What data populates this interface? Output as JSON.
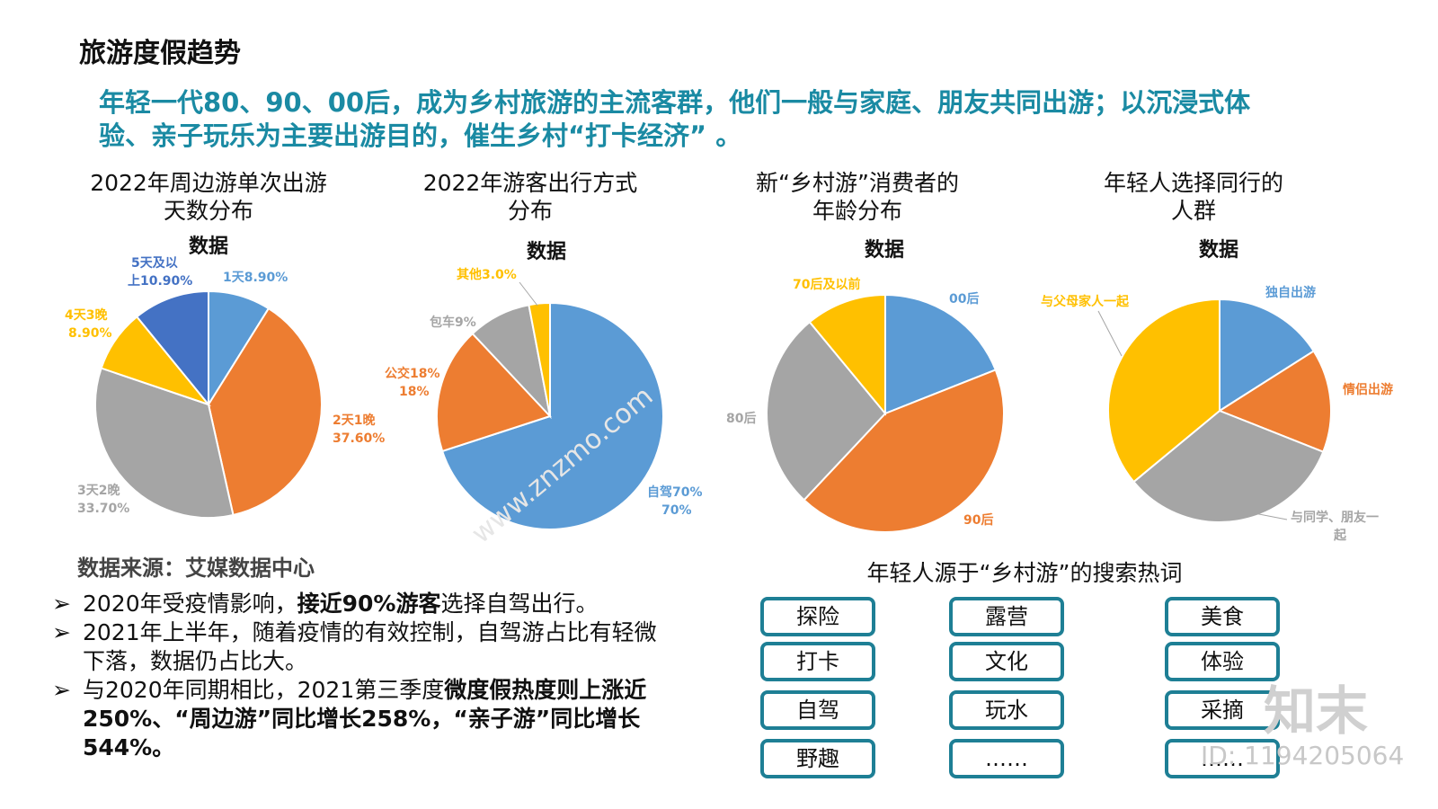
{
  "page_title": "旅游度假趋势",
  "subtitle": {
    "line1": "年轻一代80、90、00后，成为乡村旅游的主流客群，他们一般与家庭、朋友共同出游；以沉浸式体",
    "line2": "验、亲子玩乐为主要出游目的，催生乡村“打卡经济” 。"
  },
  "colors": {
    "blue": "#5b9bd5",
    "orange": "#ed7d31",
    "gray": "#a5a5a5",
    "yellow": "#ffc000",
    "darkblue": "#4472c4",
    "teal": "#1a8aa3",
    "kwborder": "#1e7f95"
  },
  "chart_data": [
    {
      "type": "pie",
      "title_lines": [
        "2022年周边游单次出游",
        "天数分布"
      ],
      "subtitle": "数据",
      "slices": [
        {
          "label": "1天8.90%",
          "value": 8.9,
          "color": "#5b9bd5"
        },
        {
          "label": "2天1晚 37.60%",
          "value": 37.6,
          "color": "#ed7d31"
        },
        {
          "label": "3天2晚 33.70%",
          "value": 33.7,
          "color": "#a5a5a5"
        },
        {
          "label": "4天3晚 8.90%",
          "value": 8.9,
          "color": "#ffc000"
        },
        {
          "label": "5天及以上10.90%",
          "value": 10.9,
          "color": "#4472c4"
        }
      ]
    },
    {
      "type": "pie",
      "title_lines": [
        "2022年游客出行方式",
        "分布"
      ],
      "subtitle": "数据",
      "slices": [
        {
          "label": "自驾70% 70%",
          "value": 70,
          "color": "#5b9bd5"
        },
        {
          "label": "公交18% 18%",
          "value": 18,
          "color": "#ed7d31"
        },
        {
          "label": "包车9%",
          "value": 9,
          "color": "#a5a5a5"
        },
        {
          "label": "其他3.0%",
          "value": 3,
          "color": "#ffc000"
        }
      ]
    },
    {
      "type": "pie",
      "title_lines": [
        "新“乡村游”消费者的",
        "年龄分布"
      ],
      "subtitle": "数据",
      "slices": [
        {
          "label": "00后",
          "value": 19,
          "color": "#5b9bd5"
        },
        {
          "label": "90后",
          "value": 43,
          "color": "#ed7d31"
        },
        {
          "label": "80后",
          "value": 27,
          "color": "#a5a5a5"
        },
        {
          "label": "70后及以前",
          "value": 11,
          "color": "#ffc000"
        }
      ]
    },
    {
      "type": "pie",
      "title_lines": [
        "年轻人选择同行的",
        "人群"
      ],
      "subtitle": "数据",
      "slices": [
        {
          "label": "独自出游",
          "value": 16,
          "color": "#5b9bd5"
        },
        {
          "label": "情侣出游",
          "value": 15,
          "color": "#ed7d31"
        },
        {
          "label": "与同学、朋友一起",
          "value": 33,
          "color": "#a5a5a5"
        },
        {
          "label": "与父母家人一起",
          "value": 36,
          "color": "#ffc000"
        }
      ]
    }
  ],
  "source": "数据来源：艾媒数据中心",
  "bullets": {
    "b1": {
      "mark": "➢",
      "pre": "2020年受疫情影响，",
      "bold": "接近90%游客",
      "post": "选择自驾出行。"
    },
    "b2": {
      "mark": "➢",
      "text": "2021年上半年，随着疫情的有效控制，自驾游占比有轻微下落，数据仍占比大。"
    },
    "b3": {
      "mark": "➢",
      "pre": "与2020年同期相比，2021第三季度",
      "bold": "微度假热度则上涨近250%、“周边游”同比增长258%，“亲子游”同比增长544%。"
    }
  },
  "keywords": {
    "title": "年轻人源于“乡村游”的搜索热词",
    "items": [
      "探险",
      "露营",
      "美食",
      "打卡",
      "文化",
      "体验",
      "自驾",
      "玩水",
      "采摘",
      "野趣",
      "……",
      "……"
    ]
  },
  "watermark": {
    "logo": "知末",
    "id": "ID: 1194205064",
    "site": "www.znzmo.com"
  }
}
